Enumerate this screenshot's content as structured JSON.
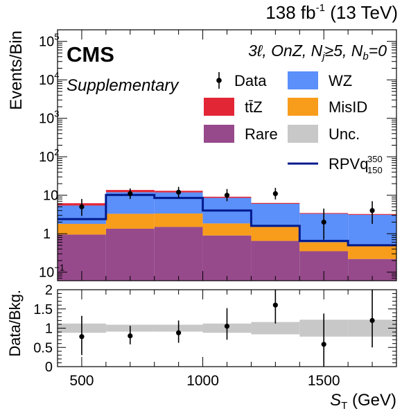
{
  "header": {
    "lumi_value": "138 fb",
    "lumi_exp": "-1",
    "energy": "(13 TeV)",
    "experiment": "CMS",
    "tag": "Supplementary",
    "selection": "3ℓ, OnZ, N",
    "selection_j_sub": "j",
    "selection_mid": "≥5, N",
    "selection_b_sub": "b",
    "selection_end": "=0"
  },
  "legend": {
    "data": "Data",
    "wz": "WZ",
    "ttz": "tt̄Z",
    "misid": "MisID",
    "rare": "Rare",
    "unc": "Unc.",
    "signal": "RPVq",
    "signal_sup": "350",
    "signal_sub": "150"
  },
  "colors": {
    "wz": "#5b8ff9",
    "ttz": "#e32636",
    "misid": "#f89c1c",
    "rare": "#964a8b",
    "unc": "#c8c8c8",
    "signal": "#001a8c",
    "data": "#000000"
  },
  "chart_data": [
    {
      "type": "bar",
      "stacked": true,
      "log_y": true,
      "ylabel": "Events/Bin",
      "xlabel": "",
      "ylim": [
        0.06,
        200000
      ],
      "xlim": [
        400,
        1800
      ],
      "bin_edges": [
        400,
        600,
        800,
        1000,
        1200,
        1400,
        1600,
        1800
      ],
      "x_ticks": [
        500,
        1000,
        1500
      ],
      "y_ticks": [
        {
          "value": 0.1,
          "base": "10",
          "exp": "−1"
        },
        {
          "value": 1,
          "base": "1",
          "exp": ""
        },
        {
          "value": 10,
          "base": "10",
          "exp": ""
        },
        {
          "value": 100,
          "base": "10",
          "exp": "2"
        },
        {
          "value": 1000,
          "base": "10",
          "exp": "3"
        },
        {
          "value": 10000,
          "base": "10",
          "exp": "4"
        },
        {
          "value": 100000,
          "base": "10",
          "exp": "5"
        }
      ],
      "series": [
        {
          "name": "Rare",
          "key": "rare",
          "values": [
            0.95,
            1.35,
            1.5,
            0.9,
            0.65,
            0.35,
            0.22
          ]
        },
        {
          "name": "MisID",
          "key": "misid",
          "values": [
            0.85,
            1.95,
            1.85,
            0.95,
            0.85,
            0.25,
            0.28
          ]
        },
        {
          "name": "WZ",
          "key": "wz",
          "values": [
            3.6,
            8.7,
            8.5,
            6.7,
            4.5,
            2.7,
            2.6
          ]
        },
        {
          "name": "tt̄Z",
          "key": "ttz",
          "values": [
            0.8,
            1.7,
            1.2,
            0.6,
            0.3,
            0.15,
            0.15
          ]
        }
      ],
      "signal": {
        "name": "RPVq",
        "values": [
          2.4,
          10.2,
          8.5,
          4.0,
          1.6,
          0.65,
          0.5
        ]
      },
      "data_points": [
        {
          "x": 500,
          "y": 5.0,
          "lo": 2.9,
          "hi": 8.0
        },
        {
          "x": 700,
          "y": 11.0,
          "lo": 8.0,
          "hi": 15.0
        },
        {
          "x": 900,
          "y": 12.0,
          "lo": 8.5,
          "hi": 16.5
        },
        {
          "x": 1100,
          "y": 10.0,
          "lo": 7.0,
          "hi": 14.5
        },
        {
          "x": 1300,
          "y": 11.0,
          "lo": 7.8,
          "hi": 15.5
        },
        {
          "x": 1500,
          "y": 2.0,
          "lo": 0.7,
          "hi": 4.5
        },
        {
          "x": 1700,
          "y": 4.0,
          "lo": 1.8,
          "hi": 7.0
        }
      ]
    },
    {
      "type": "scatter",
      "ylabel": "Data/Bkg.",
      "xlabel": "S",
      "xlabel_sub": "T",
      "xlabel_unit": "(GeV)",
      "ylim": [
        0,
        2
      ],
      "xlim": [
        400,
        1800
      ],
      "y_ticks": [
        "0",
        "0.5",
        "1",
        "1.5",
        "2"
      ],
      "x_ticks": [
        "500",
        "1000",
        "1500"
      ],
      "unc_band": [
        {
          "x0": 400,
          "x1": 600,
          "lo": 0.88,
          "hi": 1.12
        },
        {
          "x0": 600,
          "x1": 800,
          "lo": 0.91,
          "hi": 1.09
        },
        {
          "x0": 800,
          "x1": 1000,
          "lo": 0.91,
          "hi": 1.09
        },
        {
          "x0": 1000,
          "x1": 1200,
          "lo": 0.88,
          "hi": 1.12
        },
        {
          "x0": 1200,
          "x1": 1400,
          "lo": 0.84,
          "hi": 1.16
        },
        {
          "x0": 1400,
          "x1": 1600,
          "lo": 0.78,
          "hi": 1.22
        },
        {
          "x0": 1600,
          "x1": 1800,
          "lo": 0.78,
          "hi": 1.22
        }
      ],
      "points": [
        {
          "x": 500,
          "y": 0.78,
          "lo": 0.3,
          "hi": 1.32
        },
        {
          "x": 700,
          "y": 0.8,
          "lo": 0.58,
          "hi": 1.06
        },
        {
          "x": 900,
          "y": 0.88,
          "lo": 0.62,
          "hi": 1.2
        },
        {
          "x": 1100,
          "y": 1.05,
          "lo": 0.7,
          "hi": 1.52
        },
        {
          "x": 1300,
          "y": 1.6,
          "lo": 1.12,
          "hi": 2.0
        },
        {
          "x": 1500,
          "y": 0.58,
          "lo": 0.0,
          "hi": 1.38
        },
        {
          "x": 1700,
          "y": 1.2,
          "lo": 0.5,
          "hi": 2.0
        }
      ]
    }
  ]
}
